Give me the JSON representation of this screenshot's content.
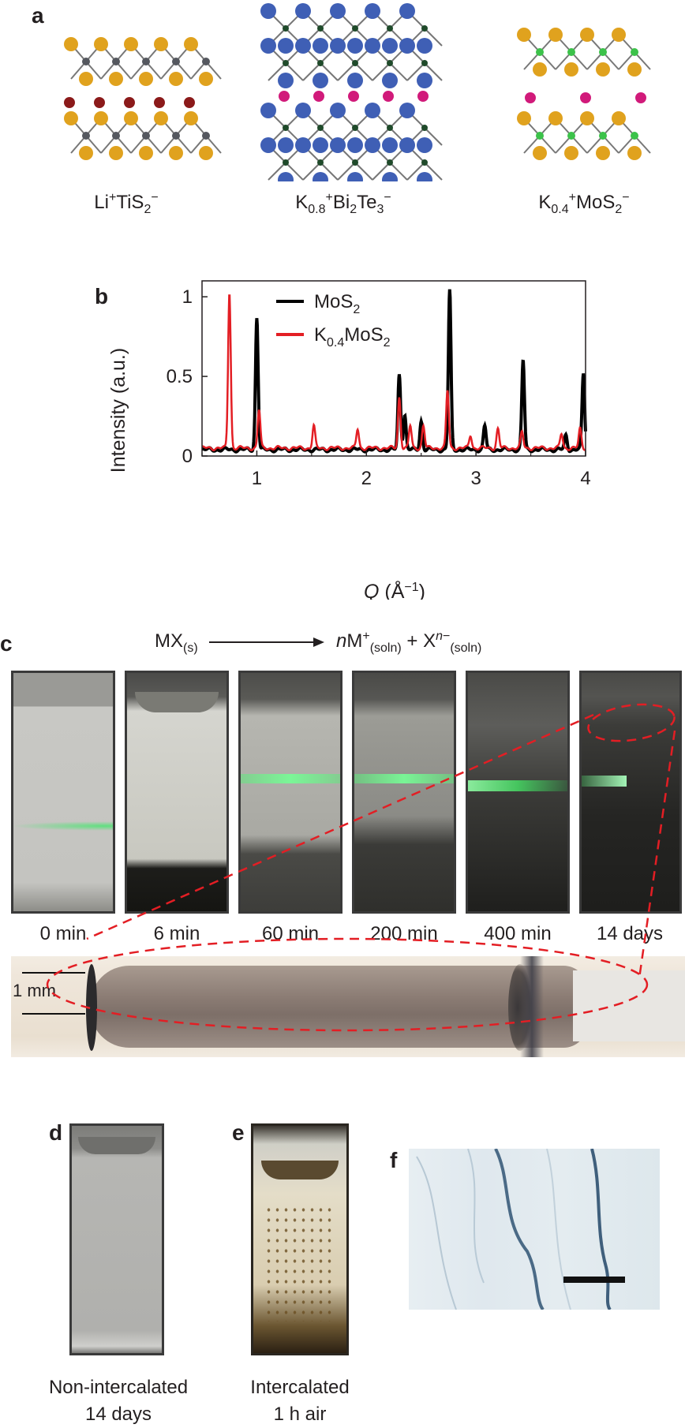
{
  "panels": {
    "a": "a",
    "b": "b",
    "c": "c",
    "d": "d",
    "e": "e",
    "f": "f"
  },
  "panel_a": {
    "structures": [
      {
        "formula_parts": [
          "Li",
          "+",
          "TiS",
          "2",
          "−"
        ],
        "colors": {
          "large": "#e0a21e",
          "small": "#55585f",
          "ion": "#8b1a1a"
        }
      },
      {
        "formula_parts": [
          "K",
          "0.8",
          "+",
          "Bi",
          "2",
          "Te",
          "3",
          "−"
        ],
        "colors": {
          "large": "#3f5fb5",
          "small": "#1f4a2a",
          "ion": "#d11a7a"
        }
      },
      {
        "formula_parts": [
          "K",
          "0.4",
          "+",
          "MoS",
          "2",
          "−"
        ],
        "colors": {
          "large": "#e0a21e",
          "small": "#3cc24a",
          "ion": "#d11a7a"
        }
      }
    ]
  },
  "chart_data": {
    "type": "line",
    "xlabel_italic": "Q",
    "xlabel_rest": " (Å",
    "xlabel_sup": "−1",
    "xlabel_close": ")",
    "ylabel": "Intensity (a.u.)",
    "xlim": [
      0.5,
      4.0
    ],
    "ylim": [
      0,
      1.1
    ],
    "xticks": [
      1,
      2,
      3,
      4
    ],
    "xtick_labels": [
      "1",
      "2",
      "3",
      "4"
    ],
    "yticks": [
      0,
      0.5,
      1
    ],
    "ytick_labels": [
      "0",
      "0.5",
      "1"
    ],
    "grid": false,
    "legend_position": "top-center",
    "series": [
      {
        "name_main": "MoS",
        "name_sub": "2",
        "color": "#000000",
        "baseline": 0.04,
        "peaks": [
          [
            1.0,
            0.83
          ],
          [
            2.3,
            0.47
          ],
          [
            2.35,
            0.22
          ],
          [
            2.5,
            0.18
          ],
          [
            2.76,
            1.0
          ],
          [
            3.08,
            0.15
          ],
          [
            3.43,
            0.56
          ],
          [
            3.98,
            0.48
          ],
          [
            3.82,
            0.09
          ]
        ]
      },
      {
        "name_main": "K",
        "name_sub": "0.4",
        "name_rest": "MoS",
        "name_sub2": "2",
        "color": "#e31e24",
        "baseline": 0.05,
        "peaks": [
          [
            0.75,
            0.98
          ],
          [
            1.02,
            0.24
          ],
          [
            1.52,
            0.14
          ],
          [
            1.92,
            0.12
          ],
          [
            2.3,
            0.32
          ],
          [
            2.4,
            0.14
          ],
          [
            2.52,
            0.14
          ],
          [
            2.74,
            0.36
          ],
          [
            2.95,
            0.08
          ],
          [
            3.2,
            0.12
          ],
          [
            3.42,
            0.1
          ],
          [
            3.78,
            0.09
          ],
          [
            3.95,
            0.12
          ]
        ]
      }
    ]
  },
  "panel_c": {
    "reaction": {
      "left": "MX",
      "left_sub": "(s)",
      "right_n": "n",
      "right_m": "M",
      "right_m_sup": "+",
      "right_m_sub": "(soln)",
      "plus": " + X",
      "right_x_sup_italic": "n",
      "right_x_sup": "−",
      "right_x_sub": "(soln)"
    },
    "times": [
      "0 min",
      "6 min",
      "60 min",
      "200 min",
      "400 min",
      "14 days"
    ],
    "scale_label": "1 mm"
  },
  "panel_d": {
    "caption_line1": "Non-intercalated",
    "caption_line2": "14 days"
  },
  "panel_e": {
    "caption_line1": "Intercalated",
    "caption_line2": "1 h air"
  }
}
